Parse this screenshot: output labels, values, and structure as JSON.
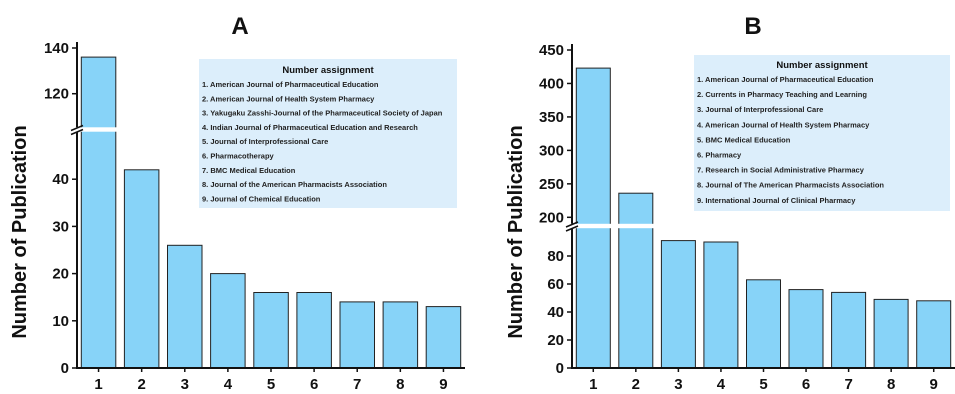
{
  "chart_data": [
    {
      "type": "bar",
      "title": "A",
      "ylabel": "Number of Publication",
      "categories": [
        "1",
        "2",
        "3",
        "4",
        "5",
        "6",
        "7",
        "8",
        "9"
      ],
      "values": [
        136,
        42,
        26,
        20,
        16,
        16,
        14,
        14,
        13
      ],
      "y_axis_break": true,
      "y_lower_range": [
        0,
        50
      ],
      "y_upper_range": [
        105,
        140
      ],
      "y_lower_ticks": [
        "0",
        "10",
        "20",
        "30",
        "40"
      ],
      "y_upper_ticks": [
        "120",
        "140"
      ],
      "bar_color": "#87d3f8",
      "legend": {
        "title": "Number assignment",
        "placement": "top-right",
        "items": [
          "1. American Journal of Pharmaceutical Education",
          "2. American Journal of Health System Pharmacy",
          "3. Yakugaku Zasshi-Journal of the Pharmaceutical Society of Japan",
          "4. Indian Journal of Pharmaceutical Education and Research",
          "5. Journal of Interprofessional Care",
          "6. Pharmacotherapy",
          "7. BMC Medical Education",
          "8. Journal of the American Pharmacists Association",
          "9. Journal of Chemical Education"
        ]
      }
    },
    {
      "type": "bar",
      "title": "B",
      "ylabel": "Number of Publication",
      "categories": [
        "1",
        "2",
        "3",
        "4",
        "5",
        "6",
        "7",
        "8",
        "9"
      ],
      "values": [
        423,
        236,
        91,
        90,
        63,
        56,
        54,
        49,
        48
      ],
      "y_axis_break": true,
      "y_lower_range": [
        0,
        100
      ],
      "y_upper_range": [
        190,
        450
      ],
      "y_lower_ticks": [
        "0",
        "20",
        "40",
        "60",
        "80"
      ],
      "y_upper_ticks": [
        "200",
        "250",
        "300",
        "350",
        "400",
        "450"
      ],
      "bar_color": "#87d3f8",
      "legend": {
        "title": "Number assignment",
        "placement": "top-right",
        "items": [
          "1. American Journal of Pharmaceutical Education",
          "2. Currents in Pharmacy Teaching and Learning",
          "3. Journal of Interprofessional Care",
          "4. American Journal of Health System Pharmacy",
          "5. BMC Medical Education",
          "6. Pharmacy",
          "7. Research in Social Administrative Pharmacy",
          "8. Journal of The American Pharmacists Association",
          "9. International Journal of Clinical Pharmacy"
        ]
      }
    }
  ]
}
